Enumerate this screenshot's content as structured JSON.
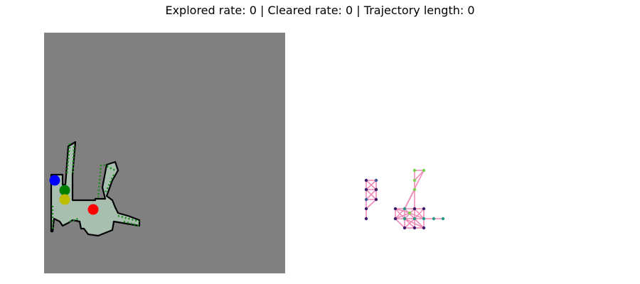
{
  "title": "Explored rate: 0 | Cleared rate: 0 | Trajectory length: 0",
  "colors": {
    "unknown": "#808080",
    "free": "#a8bfb0",
    "wall": "#000000",
    "frontier": "#1a8a1a",
    "agent_blue": "#0000ff",
    "agent_green": "#008000",
    "agent_yellow": "#bdbd00",
    "agent_red": "#ff0000",
    "edge": "#f08cb8",
    "node_dark": "#3b1f6b",
    "node_mid": "#3b5a9a",
    "node_teal": "#2a9a88",
    "node_green": "#7ad14c"
  },
  "agents": [
    {
      "name": "agent-blue",
      "color": "agent_blue"
    },
    {
      "name": "agent-green",
      "color": "agent_green"
    },
    {
      "name": "agent-yellow",
      "color": "agent_yellow"
    },
    {
      "name": "agent-red",
      "color": "agent_red"
    }
  ]
}
